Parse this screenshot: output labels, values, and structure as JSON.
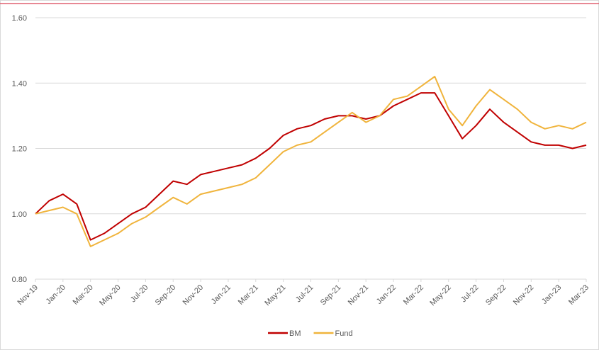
{
  "chart_data": {
    "type": "line",
    "categories": [
      "Nov-19",
      null,
      "Jan-20",
      null,
      "Mar-20",
      null,
      "May-20",
      null,
      "Jul-20",
      null,
      "Sep-20",
      null,
      "Nov-20",
      null,
      "Jan-21",
      null,
      "Mar-21",
      null,
      "May-21",
      null,
      "Jul-21",
      null,
      "Sep-21",
      null,
      "Nov-21",
      null,
      "Jan-22",
      null,
      "Mar-22",
      null,
      "May-22",
      null,
      "Jul-22",
      null,
      "Sep-22",
      null,
      "Nov-22",
      null,
      "Jan-23",
      null,
      "Mar-23"
    ],
    "series": [
      {
        "name": "BM",
        "color": "#c00000",
        "values": [
          1.0,
          1.04,
          1.06,
          1.03,
          0.92,
          0.94,
          0.97,
          1.0,
          1.02,
          1.06,
          1.1,
          1.09,
          1.12,
          1.13,
          1.14,
          1.15,
          1.17,
          1.2,
          1.24,
          1.26,
          1.27,
          1.29,
          1.3,
          1.3,
          1.29,
          1.3,
          1.33,
          1.35,
          1.37,
          1.37,
          1.3,
          1.23,
          1.27,
          1.32,
          1.28,
          1.25,
          1.22,
          1.21,
          1.21,
          1.2,
          1.21
        ]
      },
      {
        "name": "Fund",
        "color": "#f0b43c",
        "values": [
          1.0,
          1.01,
          1.02,
          1.0,
          0.9,
          0.92,
          0.94,
          0.97,
          0.99,
          1.02,
          1.05,
          1.03,
          1.06,
          1.07,
          1.08,
          1.09,
          1.11,
          1.15,
          1.19,
          1.21,
          1.22,
          1.25,
          1.28,
          1.31,
          1.28,
          1.3,
          1.35,
          1.36,
          1.39,
          1.42,
          1.32,
          1.27,
          1.33,
          1.38,
          1.35,
          1.32,
          1.28,
          1.26,
          1.27,
          1.26,
          1.28
        ]
      }
    ],
    "ylim": [
      0.8,
      1.6
    ],
    "yticks": [
      {
        "value": 0.8,
        "label": "0.80"
      },
      {
        "value": 1.0,
        "label": "1.00"
      },
      {
        "value": 1.2,
        "label": "1.20"
      },
      {
        "value": 1.4,
        "label": "1.40"
      },
      {
        "value": 1.6,
        "label": "1.60"
      }
    ],
    "grid": true,
    "legend": "bottom"
  }
}
